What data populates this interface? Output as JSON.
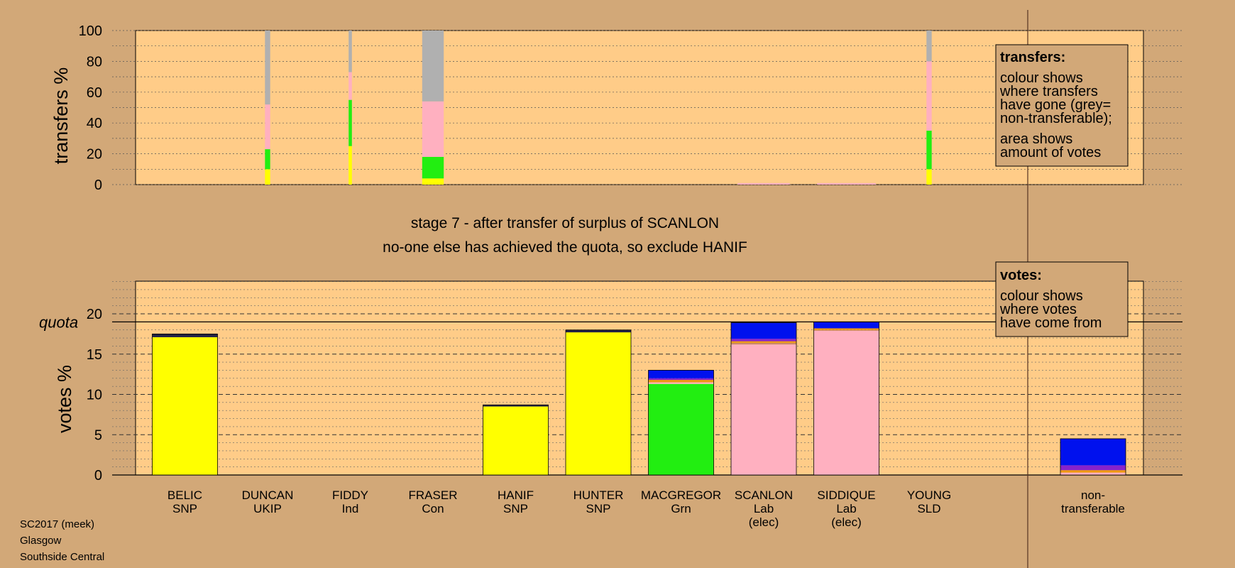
{
  "footer": {
    "line1": "SC2017 (meek)",
    "line2": "Glasgow",
    "line3": "Southside Central"
  },
  "titles": {
    "stage": "stage 7 - after transfer of surplus of SCANLON",
    "action": "no-one else has achieved the quota, so exclude HANIF"
  },
  "legend_transfers": {
    "title": "transfers:",
    "lines": [
      "colour shows",
      "where transfers",
      "have gone (grey=",
      "non-transferable);",
      "area shows",
      "amount of votes"
    ]
  },
  "legend_votes": {
    "title": "votes:",
    "lines": [
      "colour shows",
      "where votes",
      "have come from"
    ]
  },
  "colors": {
    "background": "#d2a878",
    "plot_area": "#ffcc88",
    "SNP": "#ffff00",
    "Grn": "#22ee11",
    "Lab": "#ffb0c0",
    "Con": "#0011ee",
    "UKIP": "#8822cc",
    "Ind": "#cc8866",
    "SLD": "#ee9911",
    "nontransferable": "#b0b0b0",
    "mark_dark": "#222244"
  },
  "chart_data": [
    {
      "type": "bar",
      "title": "",
      "ylabel": "transfers %",
      "ylim": [
        0,
        100
      ],
      "yticks": [
        0,
        20,
        40,
        60,
        80,
        100
      ],
      "grid": true,
      "categories": [
        "BELIC",
        "DUNCAN",
        "FIDDY",
        "FRASER",
        "HANIF",
        "HUNTER",
        "MACGREGOR",
        "SCANLON",
        "SIDDIQUE",
        "YOUNG"
      ],
      "transfers": [
        {
          "candidate": "DUNCAN",
          "relative_width": 0.08,
          "segments": [
            {
              "color": "SNP",
              "value": 10
            },
            {
              "color": "Grn",
              "value": 13
            },
            {
              "color": "Lab",
              "value": 29
            },
            {
              "color": "nontransferable",
              "value": 48
            }
          ]
        },
        {
          "candidate": "FIDDY",
          "relative_width": 0.05,
          "segments": [
            {
              "color": "SNP",
              "value": 25
            },
            {
              "color": "Grn",
              "value": 30
            },
            {
              "color": "Lab",
              "value": 18
            },
            {
              "color": "nontransferable",
              "value": 27
            }
          ]
        },
        {
          "candidate": "FRASER",
          "relative_width": 0.33,
          "segments": [
            {
              "color": "SNP",
              "value": 4
            },
            {
              "color": "Grn",
              "value": 14
            },
            {
              "color": "Lab",
              "value": 36
            },
            {
              "color": "nontransferable",
              "value": 46
            }
          ]
        },
        {
          "candidate": "SCANLON",
          "relative_width": 0.8,
          "segments": [
            {
              "color": "Lab",
              "value": 1
            }
          ]
        },
        {
          "candidate": "SIDDIQUE",
          "relative_width": 0.9,
          "segments": [
            {
              "color": "Lab",
              "value": 1
            }
          ]
        },
        {
          "candidate": "YOUNG",
          "relative_width": 0.08,
          "segments": [
            {
              "color": "SNP",
              "value": 10
            },
            {
              "color": "Grn",
              "value": 25
            },
            {
              "color": "Lab",
              "value": 45
            },
            {
              "color": "nontransferable",
              "value": 20
            }
          ]
        }
      ]
    },
    {
      "type": "bar",
      "title": "",
      "ylabel": "votes %",
      "ylim": [
        0,
        24
      ],
      "yticks": [
        0,
        5,
        10,
        15,
        20
      ],
      "grid": true,
      "quota": 19,
      "quota_label": "quota",
      "categories": [
        "BELIC",
        "DUNCAN",
        "FIDDY",
        "FRASER",
        "HANIF",
        "HUNTER",
        "MACGREGOR",
        "SCANLON",
        "SIDDIQUE",
        "YOUNG"
      ],
      "party_labels": [
        "SNP",
        "UKIP",
        "Ind",
        "Con",
        "SNP",
        "SNP",
        "Grn",
        "Lab",
        "Lab",
        "SLD"
      ],
      "status_labels": [
        "",
        "",
        "",
        "",
        "",
        "",
        "",
        "(elec)",
        "(elec)",
        ""
      ],
      "stacks": [
        [
          {
            "color": "SNP",
            "value": 17.1
          },
          {
            "color": "mark_dark",
            "value": 0.4
          }
        ],
        [],
        [],
        [],
        [
          {
            "color": "SNP",
            "value": 8.5
          },
          {
            "color": "mark_dark",
            "value": 0.2
          }
        ],
        [
          {
            "color": "SNP",
            "value": 17.7
          },
          {
            "color": "mark_dark",
            "value": 0.3
          }
        ],
        [
          {
            "color": "Grn",
            "value": 11.3
          },
          {
            "color": "Lab",
            "value": 0.2
          },
          {
            "color": "SLD",
            "value": 0.3
          },
          {
            "color": "UKIP",
            "value": 0.2
          },
          {
            "color": "Con",
            "value": 1.0
          }
        ],
        [
          {
            "color": "Lab",
            "value": 16.2
          },
          {
            "color": "Ind",
            "value": 0.2
          },
          {
            "color": "SLD",
            "value": 0.2
          },
          {
            "color": "UKIP",
            "value": 0.3
          },
          {
            "color": "Con",
            "value": 2.0
          }
        ],
        [
          {
            "color": "Lab",
            "value": 17.9
          },
          {
            "color": "Ind",
            "value": 0.1
          },
          {
            "color": "SLD",
            "value": 0.2
          },
          {
            "color": "Con",
            "value": 0.8
          }
        ],
        []
      ],
      "nontransferable": {
        "label": [
          "non-",
          "transferable"
        ],
        "stack": [
          {
            "color": "Lab",
            "value": 0.3
          },
          {
            "color": "SLD",
            "value": 0.3
          },
          {
            "color": "UKIP",
            "value": 0.6
          },
          {
            "color": "Con",
            "value": 3.3
          }
        ]
      }
    }
  ]
}
